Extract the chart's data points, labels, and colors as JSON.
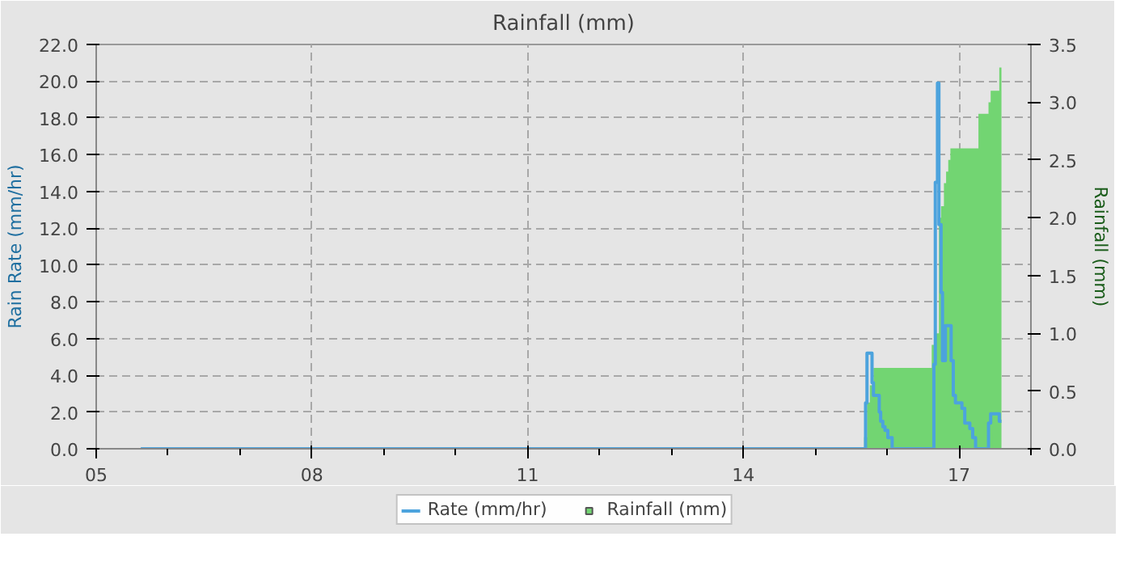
{
  "chart_data": {
    "type": "step",
    "title": "Rainfall (mm)",
    "ylabel": "Rain Rate (mm/hr)",
    "y2label": "Rainfall (mm)",
    "xlim": [
      5,
      18
    ],
    "xticks": [
      {
        "value": 5,
        "label": "05"
      },
      {
        "value": 6,
        "label": null
      },
      {
        "value": 7,
        "label": null
      },
      {
        "value": 8,
        "label": "08"
      },
      {
        "value": 9,
        "label": null
      },
      {
        "value": 10,
        "label": null
      },
      {
        "value": 11,
        "label": "11"
      },
      {
        "value": 12,
        "label": null
      },
      {
        "value": 13,
        "label": null
      },
      {
        "value": 14,
        "label": "14"
      },
      {
        "value": 15,
        "label": null
      },
      {
        "value": 16,
        "label": null
      },
      {
        "value": 17,
        "label": "17"
      },
      {
        "value": 18,
        "label": null
      }
    ],
    "ylim": [
      0,
      22
    ],
    "yticks": [
      {
        "value": 0,
        "label": "0.0"
      },
      {
        "value": 2,
        "label": "2.0"
      },
      {
        "value": 4,
        "label": "4.0"
      },
      {
        "value": 6,
        "label": "6.0"
      },
      {
        "value": 8,
        "label": "8.0"
      },
      {
        "value": 10,
        "label": "10.0"
      },
      {
        "value": 12,
        "label": "12.0"
      },
      {
        "value": 14,
        "label": "14.0"
      },
      {
        "value": 16,
        "label": "16.0"
      },
      {
        "value": 18,
        "label": "18.0"
      },
      {
        "value": 20,
        "label": "20.0"
      },
      {
        "value": 22,
        "label": "22.0"
      }
    ],
    "y2lim": [
      0,
      3.5
    ],
    "y2ticks": [
      {
        "value": 0,
        "label": "0.0"
      },
      {
        "value": 0.5,
        "label": "0.5"
      },
      {
        "value": 1,
        "label": "1.0"
      },
      {
        "value": 1.5,
        "label": "1.5"
      },
      {
        "value": 2,
        "label": "2.0"
      },
      {
        "value": 2.5,
        "label": "2.5"
      },
      {
        "value": 3,
        "label": "3.0"
      },
      {
        "value": 3.5,
        "label": "3.5"
      }
    ],
    "grid": true,
    "legend": "bottom",
    "series": [
      {
        "name": "Rainfall (mm)",
        "type": "area",
        "axis": "y2",
        "color": "#72d572",
        "x": [
          5.62,
          15.68,
          15.68,
          15.72,
          15.72,
          15.76,
          15.76,
          15.81,
          15.81,
          16.62,
          16.62,
          16.67,
          16.67,
          16.72,
          16.72,
          16.75,
          16.75,
          16.79,
          16.79,
          16.82,
          16.82,
          16.85,
          16.85,
          16.88,
          16.88,
          16.92,
          16.92,
          17.27,
          17.27,
          17.41,
          17.41,
          17.44,
          17.44,
          17.56,
          17.56,
          17.59
        ],
        "values": [
          0,
          0,
          0.1,
          0.1,
          0.4,
          0.4,
          0.55,
          0.55,
          0.7,
          0.7,
          0.9,
          0.9,
          1.0,
          1.0,
          2.0,
          2.0,
          2.1,
          2.1,
          2.3,
          2.3,
          2.4,
          2.4,
          2.5,
          2.5,
          2.6,
          2.6,
          2.6,
          2.6,
          2.9,
          2.9,
          3.0,
          3.0,
          3.1,
          3.1,
          3.3,
          3.3
        ]
      },
      {
        "name": "Rate (mm/hr)",
        "axis": "y",
        "color": "#4ca3dd",
        "x": [
          5.62,
          15.7,
          15.72,
          15.79,
          15.81,
          15.89,
          15.91,
          15.94,
          15.97,
          16.01,
          16.07,
          16.11,
          16.65,
          16.67,
          16.7,
          16.72,
          16.75,
          16.77,
          16.81,
          16.89,
          16.92,
          16.95,
          17.04,
          17.08,
          17.15,
          17.19,
          17.23,
          17.41,
          17.44,
          17.56,
          17.59
        ],
        "values": [
          0,
          2.5,
          5.2,
          3.6,
          2.9,
          2.0,
          1.5,
          1.2,
          1.0,
          0.6,
          0,
          0,
          4.6,
          14.5,
          19.9,
          12.2,
          8.5,
          4.8,
          6.7,
          4.8,
          2.9,
          2.5,
          2.2,
          1.4,
          1.1,
          0.6,
          0,
          1.4,
          1.9,
          1.5,
          1.5
        ]
      }
    ]
  }
}
